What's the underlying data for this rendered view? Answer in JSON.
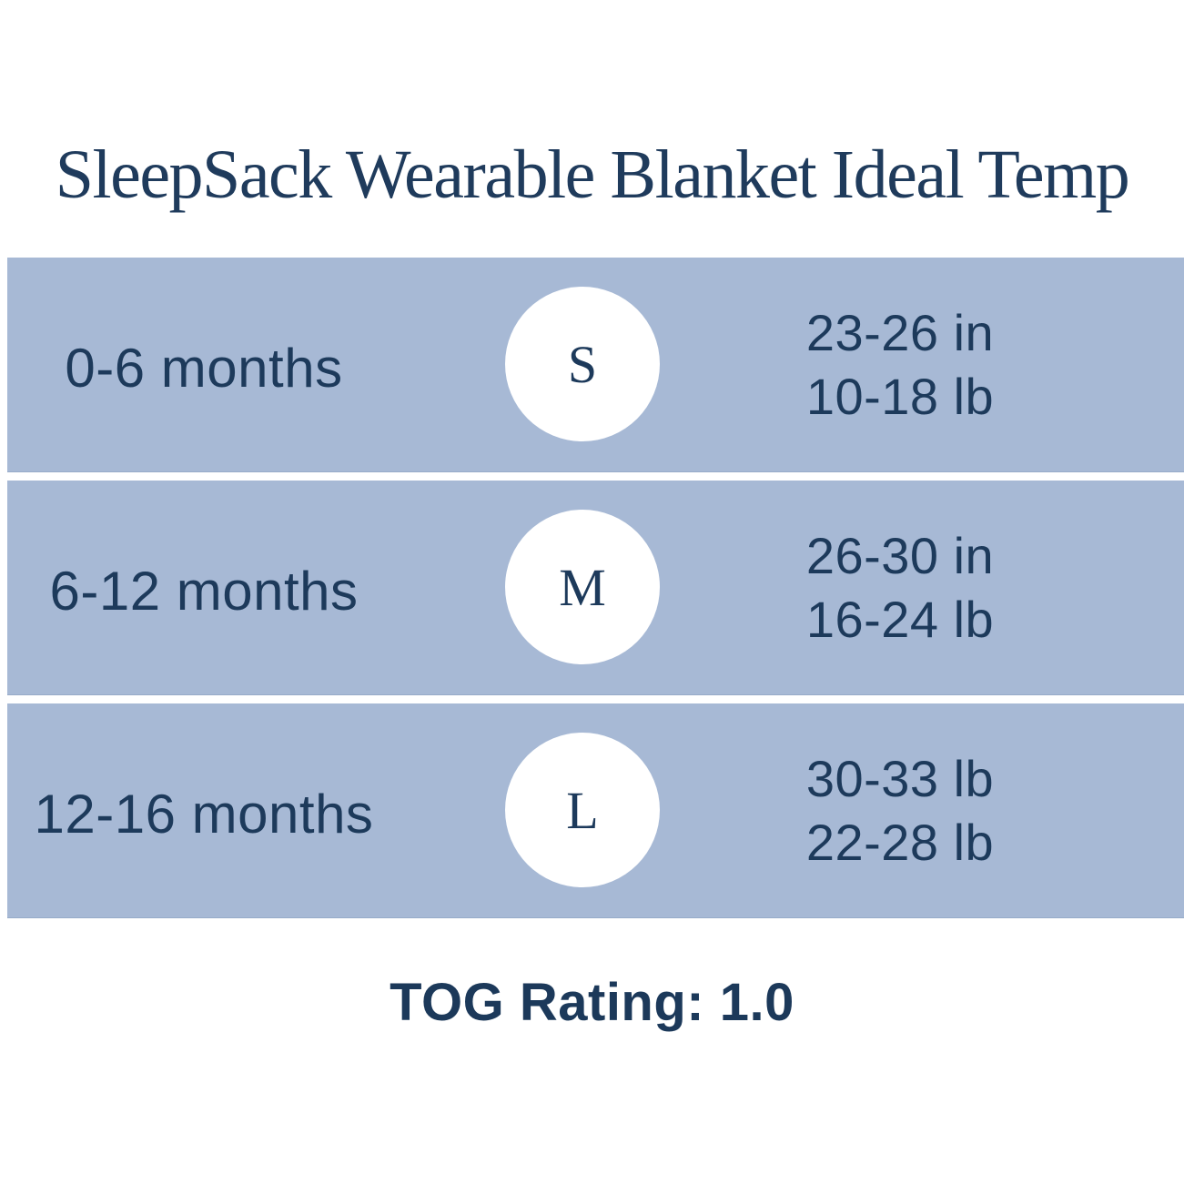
{
  "title": "SleepSack Wearable Blanket Ideal Temp",
  "rows": [
    {
      "age": "0-6 months",
      "size": "S",
      "line1": "23-26 in",
      "line2": "10-18 lb"
    },
    {
      "age": "6-12 months",
      "size": "M",
      "line1": "26-30 in",
      "line2": "16-24 lb"
    },
    {
      "age": "12-16 months",
      "size": "L",
      "line1": "30-33 lb",
      "line2": "22-28 lb"
    }
  ],
  "footer": {
    "tog_label": "TOG Rating: 1.0"
  },
  "colors": {
    "row_background": "#a7b9d5",
    "text_navy": "#1d3a5b",
    "circle_background": "#ffffff",
    "page_background": "#ffffff"
  },
  "chart_data": {
    "type": "table",
    "title": "SleepSack Wearable Blanket Ideal Temp",
    "rows": [
      {
        "age": "0-6 months",
        "size": "S",
        "measurements": [
          "23-26 in",
          "10-18 lb"
        ]
      },
      {
        "age": "6-12 months",
        "size": "M",
        "measurements": [
          "26-30 in",
          "16-24 lb"
        ]
      },
      {
        "age": "12-16 months",
        "size": "L",
        "measurements": [
          "30-33 lb",
          "22-28 lb"
        ]
      }
    ],
    "footnote": "TOG Rating: 1.0",
    "layout": "three horizontal bands; per band: age label left, white size circle center, measurement range right"
  }
}
